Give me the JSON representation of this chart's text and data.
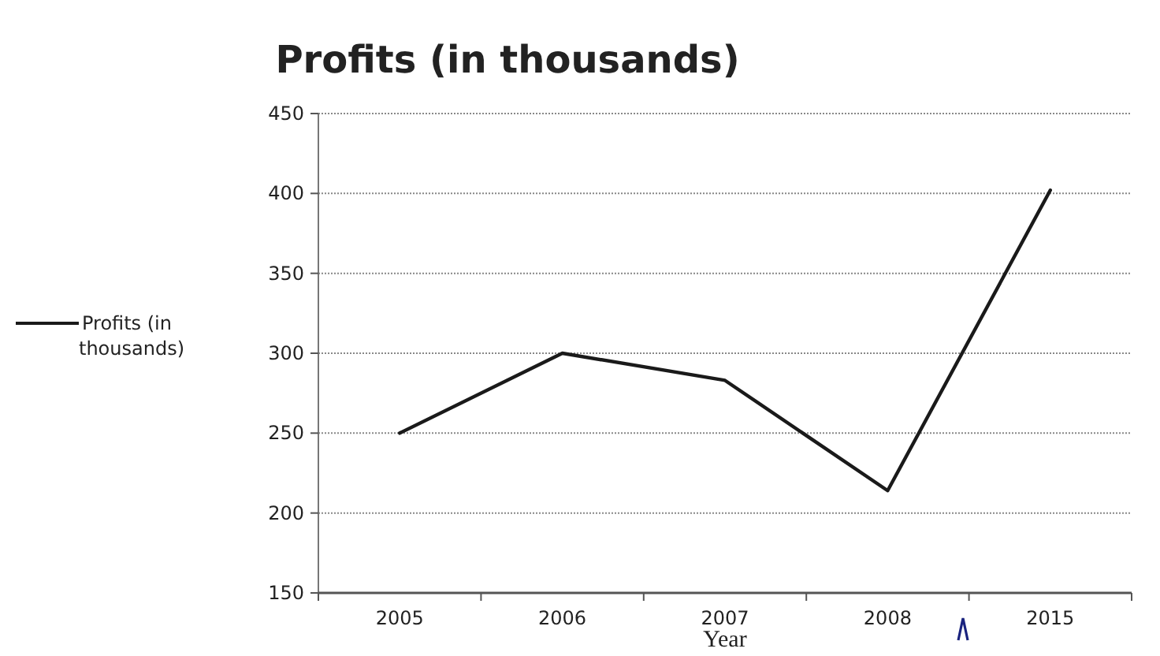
{
  "chart_data": {
    "type": "line",
    "title": "Profits (in thousands)",
    "xlabel": "Year",
    "categories": [
      "2005",
      "2006",
      "2007",
      "2008",
      "2015"
    ],
    "series": [
      {
        "name": "Profits (in thousands)",
        "color": "#1a1a1a",
        "values": [
          250,
          300,
          283,
          214,
          402
        ]
      }
    ],
    "ylim": [
      150,
      450
    ],
    "yticks": [
      150,
      200,
      250,
      300,
      350,
      400,
      450
    ],
    "grid": "y",
    "legend": "left",
    "marker": "none",
    "line_style": "solid"
  }
}
